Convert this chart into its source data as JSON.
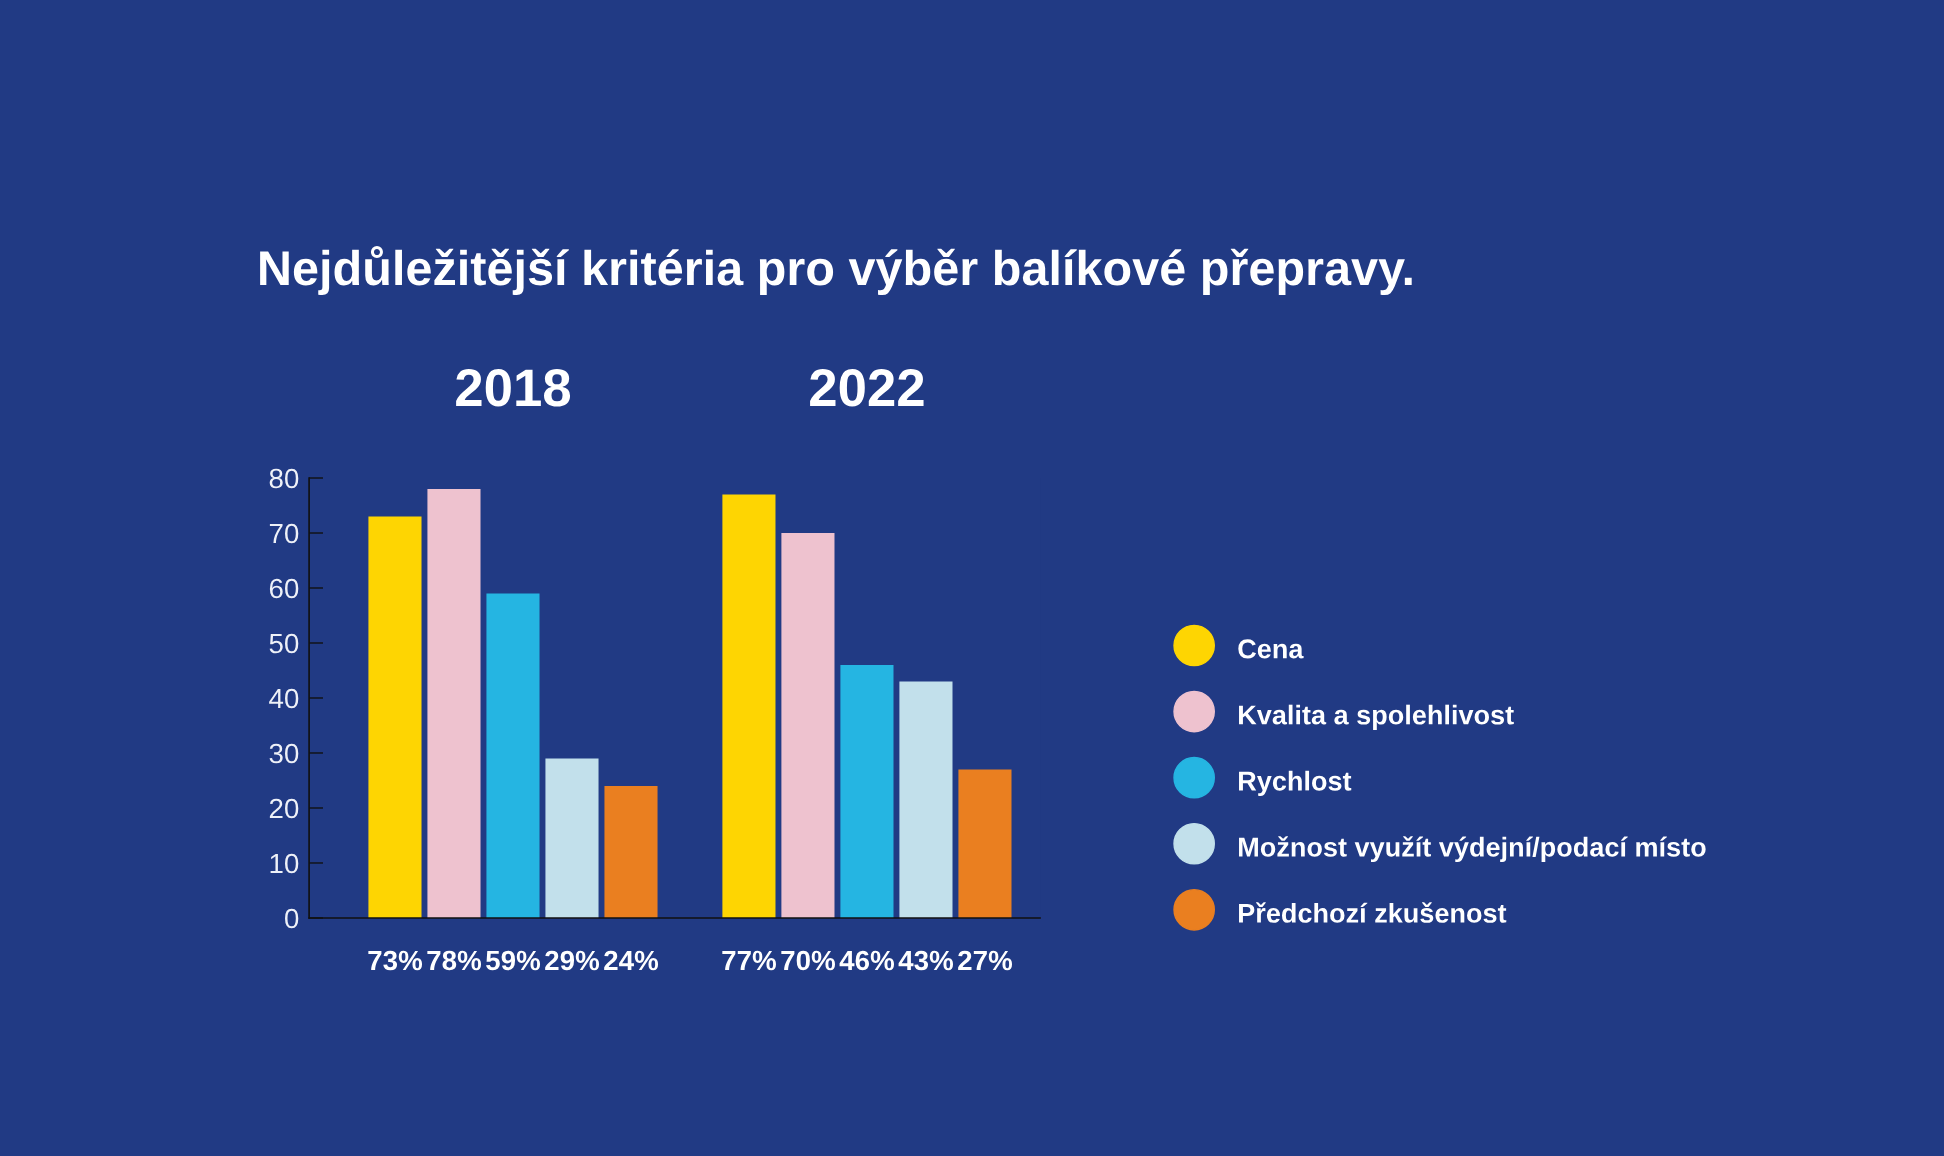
{
  "chart_data": {
    "type": "bar",
    "title": "Nejdůležitější kritéria pro výběr balíkové přepravy.",
    "categories": [
      "2018",
      "2022"
    ],
    "series": [
      {
        "name": "Cena",
        "color": "#fed502",
        "values": [
          73,
          77
        ],
        "value_labels": [
          "73%",
          "77%"
        ]
      },
      {
        "name": "Kvalita a spolehlivost",
        "color": "#eec2cf",
        "values": [
          78,
          70
        ],
        "value_labels": [
          "78%",
          "70%"
        ]
      },
      {
        "name": "Rychlost",
        "color": "#25b5e2",
        "values": [
          59,
          46
        ],
        "value_labels": [
          "59%",
          "46%"
        ]
      },
      {
        "name": "Možnost využít výdejní/podací místo",
        "color": "#c2e0eb",
        "values": [
          29,
          43
        ],
        "value_labels": [
          "29%",
          "43%"
        ]
      },
      {
        "name": "Předchozí zkušenost",
        "color": "#ea7f20",
        "values": [
          24,
          27
        ],
        "value_labels": [
          "24%",
          "27%"
        ]
      }
    ],
    "ylim": [
      0,
      80
    ],
    "yticks": [
      0,
      10,
      20,
      30,
      40,
      50,
      60,
      70,
      80
    ],
    "grid": false,
    "legend": "right"
  }
}
